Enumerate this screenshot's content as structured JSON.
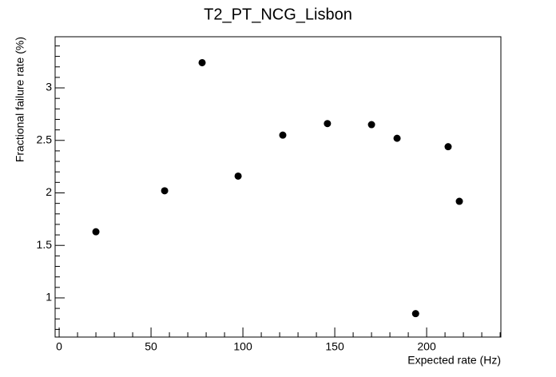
{
  "chart_data": {
    "type": "scatter",
    "title": "T2_PT_NCG_Lisbon",
    "x_label": "Expected rate (Hz)",
    "y_label": "Fractional failure rate (%)",
    "x": [
      20,
      57.4,
      77.8,
      97.4,
      121.7,
      146,
      170,
      183.9,
      194,
      211.7,
      217.8
    ],
    "values": [
      1.63,
      2.02,
      3.24,
      2.16,
      2.55,
      2.66,
      2.65,
      2.52,
      0.85,
      2.44,
      1.92
    ],
    "color": "#000000",
    "xlim": [
      -2.2,
      240.4
    ],
    "ylim": [
      0.627,
      3.487
    ],
    "xticks": [
      0,
      50,
      100,
      150,
      200
    ],
    "yticks": [
      1,
      1.5,
      2,
      2.5,
      3
    ],
    "xminorticks": [
      10,
      20,
      30,
      40,
      60,
      70,
      80,
      90,
      110,
      120,
      130,
      140,
      160,
      170,
      180,
      190,
      210,
      220,
      230,
      240
    ],
    "yminorticks": [
      0.7,
      0.8,
      0.9,
      1.1,
      1.2,
      1.3,
      1.4,
      1.6,
      1.7,
      1.8,
      1.9,
      2.1,
      2.2,
      2.3,
      2.4,
      2.6,
      2.7,
      2.8,
      2.9,
      3.1,
      3.2,
      3.3,
      3.4
    ],
    "grid": false
  }
}
